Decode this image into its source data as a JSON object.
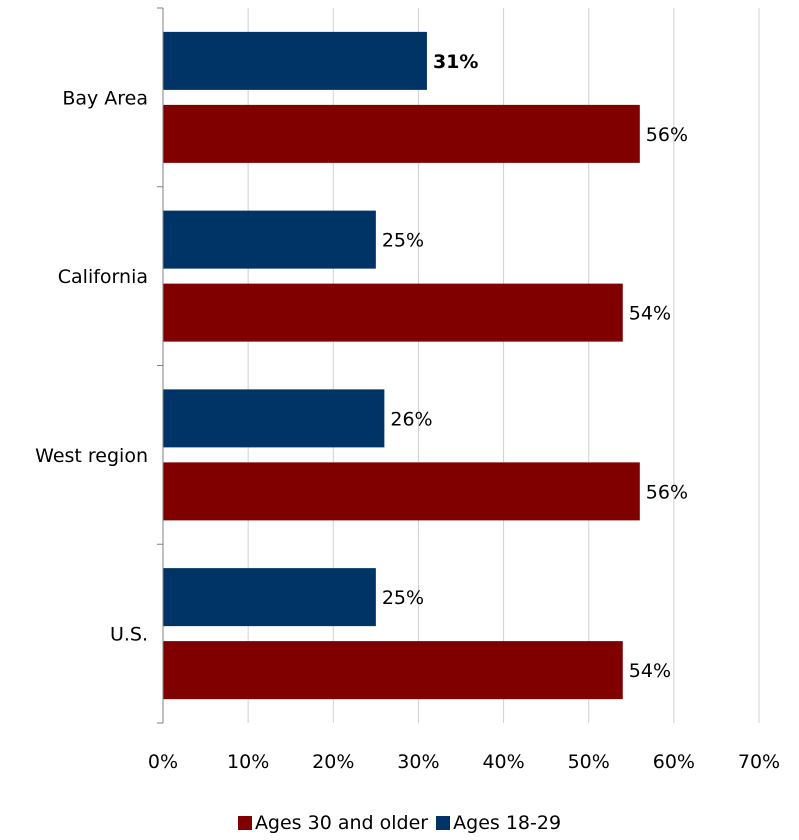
{
  "chart_data": {
    "type": "bar",
    "orientation": "horizontal",
    "categories": [
      "Bay Area",
      "California",
      "West region",
      "U.S."
    ],
    "series": [
      {
        "name": "Ages 18-29",
        "color": "#003366",
        "values": [
          31,
          25,
          26,
          25
        ],
        "labels": [
          "31%",
          "25%",
          "26%",
          "25%"
        ],
        "bold_labels": [
          true,
          false,
          false,
          false
        ]
      },
      {
        "name": "Ages 30 and older",
        "color": "#800000",
        "values": [
          56,
          54,
          56,
          54
        ],
        "labels": [
          "56%",
          "54%",
          "56%",
          "54%"
        ],
        "bold_labels": [
          false,
          false,
          false,
          false
        ]
      }
    ],
    "xlim": [
      0,
      70
    ],
    "xticks": [
      0,
      10,
      20,
      30,
      40,
      50,
      60,
      70
    ],
    "xtick_labels": [
      "0%",
      "10%",
      "20%",
      "30%",
      "40%",
      "50%",
      "60%",
      "70%"
    ],
    "grid": "vertical",
    "legend_position": "bottom",
    "legend_order": [
      "Ages 30 and older",
      "Ages 18-29"
    ],
    "title": "",
    "xlabel": "",
    "ylabel": ""
  }
}
